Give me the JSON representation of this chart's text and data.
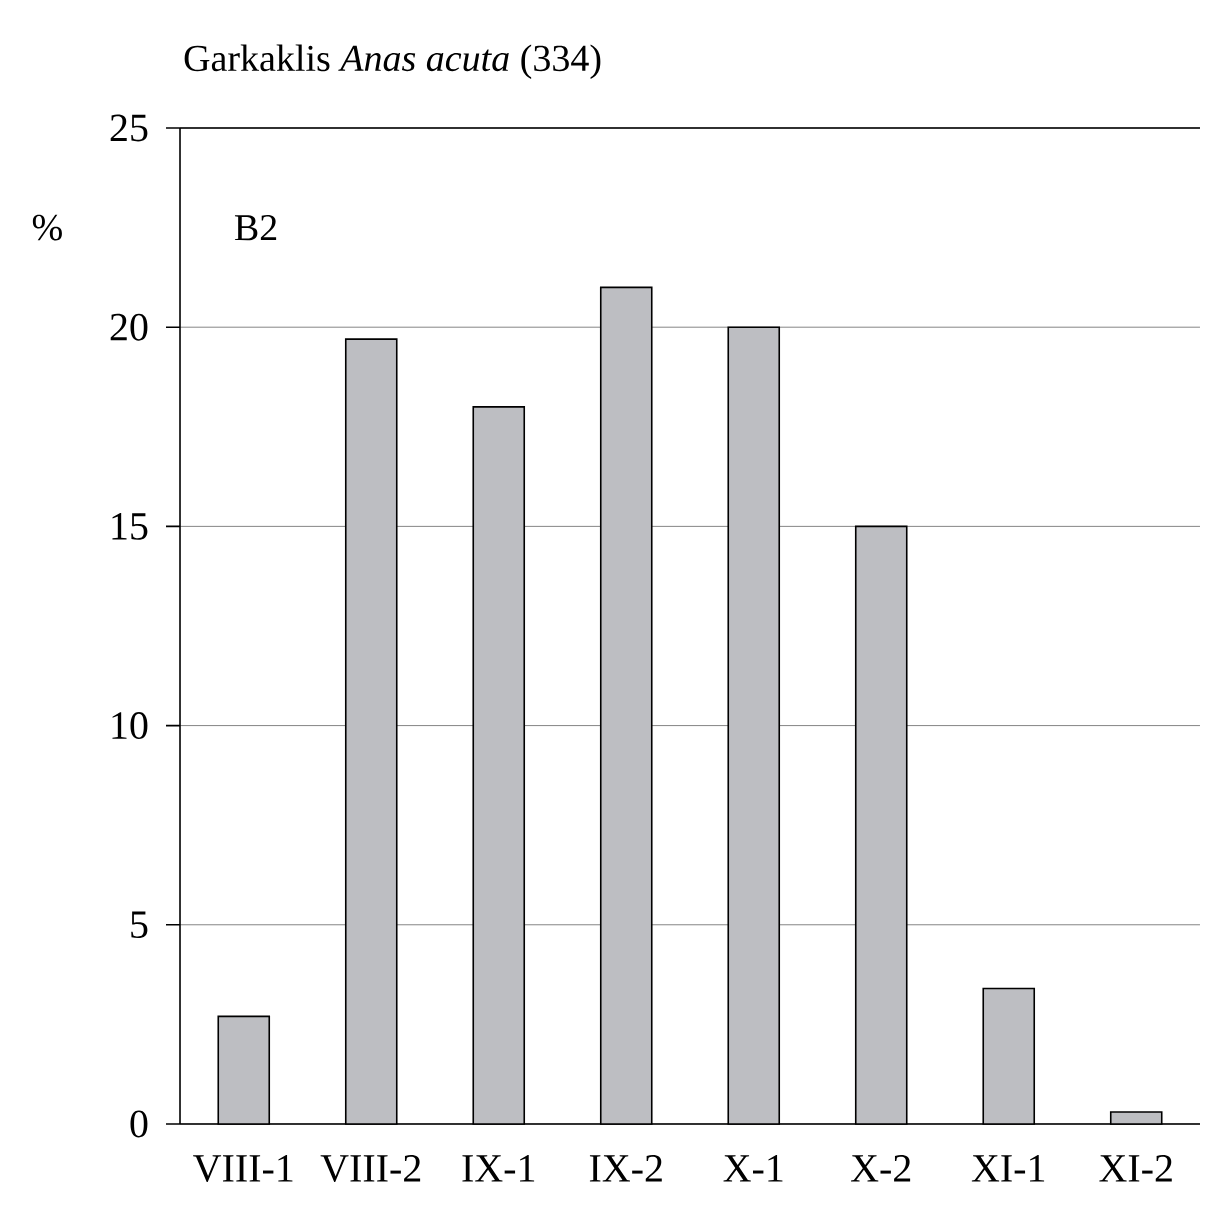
{
  "chart_data": {
    "type": "bar",
    "title": "Garkaklis *Anas acuta* (334)",
    "ylabel": "%",
    "annotations": [
      "B2"
    ],
    "categories": [
      "VIII-1",
      "VIII-2",
      "IX-1",
      "IX-2",
      "X-1",
      "X-2",
      "XI-1",
      "XI-2"
    ],
    "values": [
      2.7,
      19.7,
      18.0,
      21.0,
      20.0,
      15.0,
      3.4,
      0.3
    ],
    "color": "#bdbec2",
    "ylim": [
      0,
      25
    ],
    "yticks": [
      0,
      5,
      10,
      15,
      20,
      25
    ],
    "grid": "y"
  }
}
